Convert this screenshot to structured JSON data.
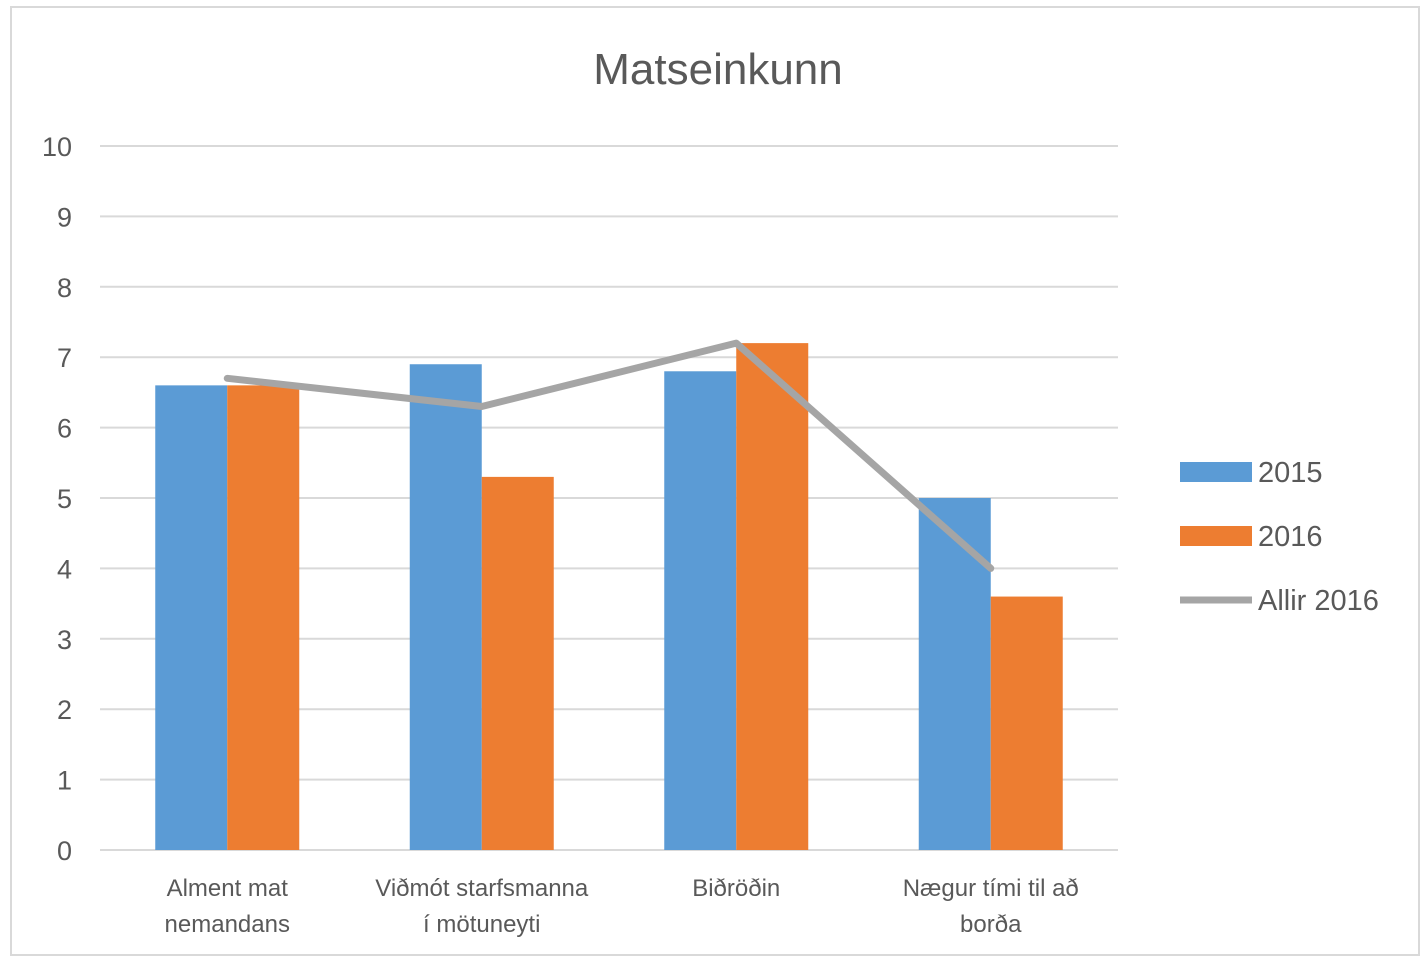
{
  "chart_data": {
    "type": "bar",
    "title": "Matseinkunn",
    "xlabel": "",
    "ylabel": "",
    "categories": [
      [
        "Alment mat",
        "nemandans"
      ],
      [
        "Viðmót starfsmanna",
        "í mötuneyti"
      ],
      [
        "Biðröðin"
      ],
      [
        "Nægur tími til að",
        "borða"
      ]
    ],
    "ylim": [
      0,
      10
    ],
    "yticks": [
      "0",
      "1",
      "2",
      "3",
      "4",
      "5",
      "6",
      "7",
      "8",
      "9",
      "10"
    ],
    "grid": true,
    "legend_position": "right",
    "series": [
      {
        "name": "2015",
        "type": "bar",
        "color": "#5b9bd5",
        "values": [
          6.6,
          6.9,
          6.8,
          5.0
        ]
      },
      {
        "name": "2016",
        "type": "bar",
        "color": "#ed7d31",
        "values": [
          6.6,
          5.3,
          7.2,
          3.6
        ]
      },
      {
        "name": "Allir 2016",
        "type": "line",
        "color": "#a5a5a5",
        "values": [
          6.7,
          6.3,
          7.2,
          4.0
        ]
      }
    ]
  }
}
